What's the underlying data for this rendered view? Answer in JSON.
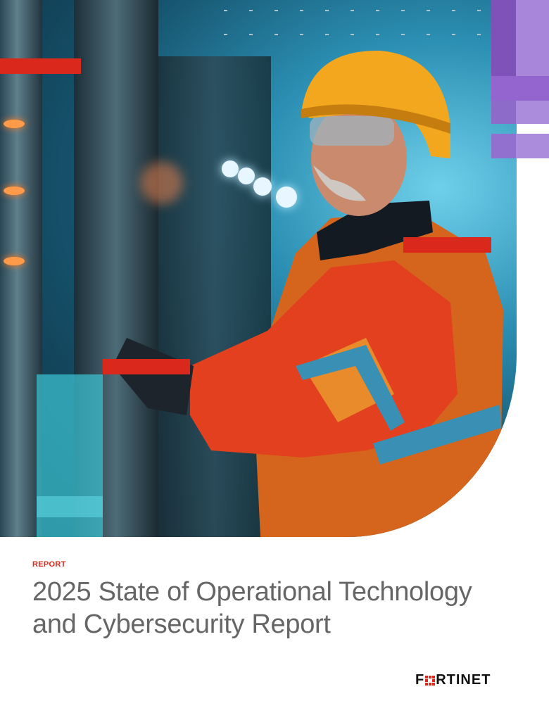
{
  "cover": {
    "label": "REPORT",
    "title_line1": "2025 State of Operational Technology",
    "title_line2": "and Cybersecurity Report"
  },
  "brand": {
    "logo_text": "FORTINET",
    "logo_prefix": "F",
    "logo_suffix": "RTINET",
    "accent_red": "#da291c",
    "accent_purple": "#a27fd6",
    "accent_cyan": "#3cc3d3"
  },
  "image": {
    "subject": "worker-in-hard-hat-at-control-panel"
  }
}
